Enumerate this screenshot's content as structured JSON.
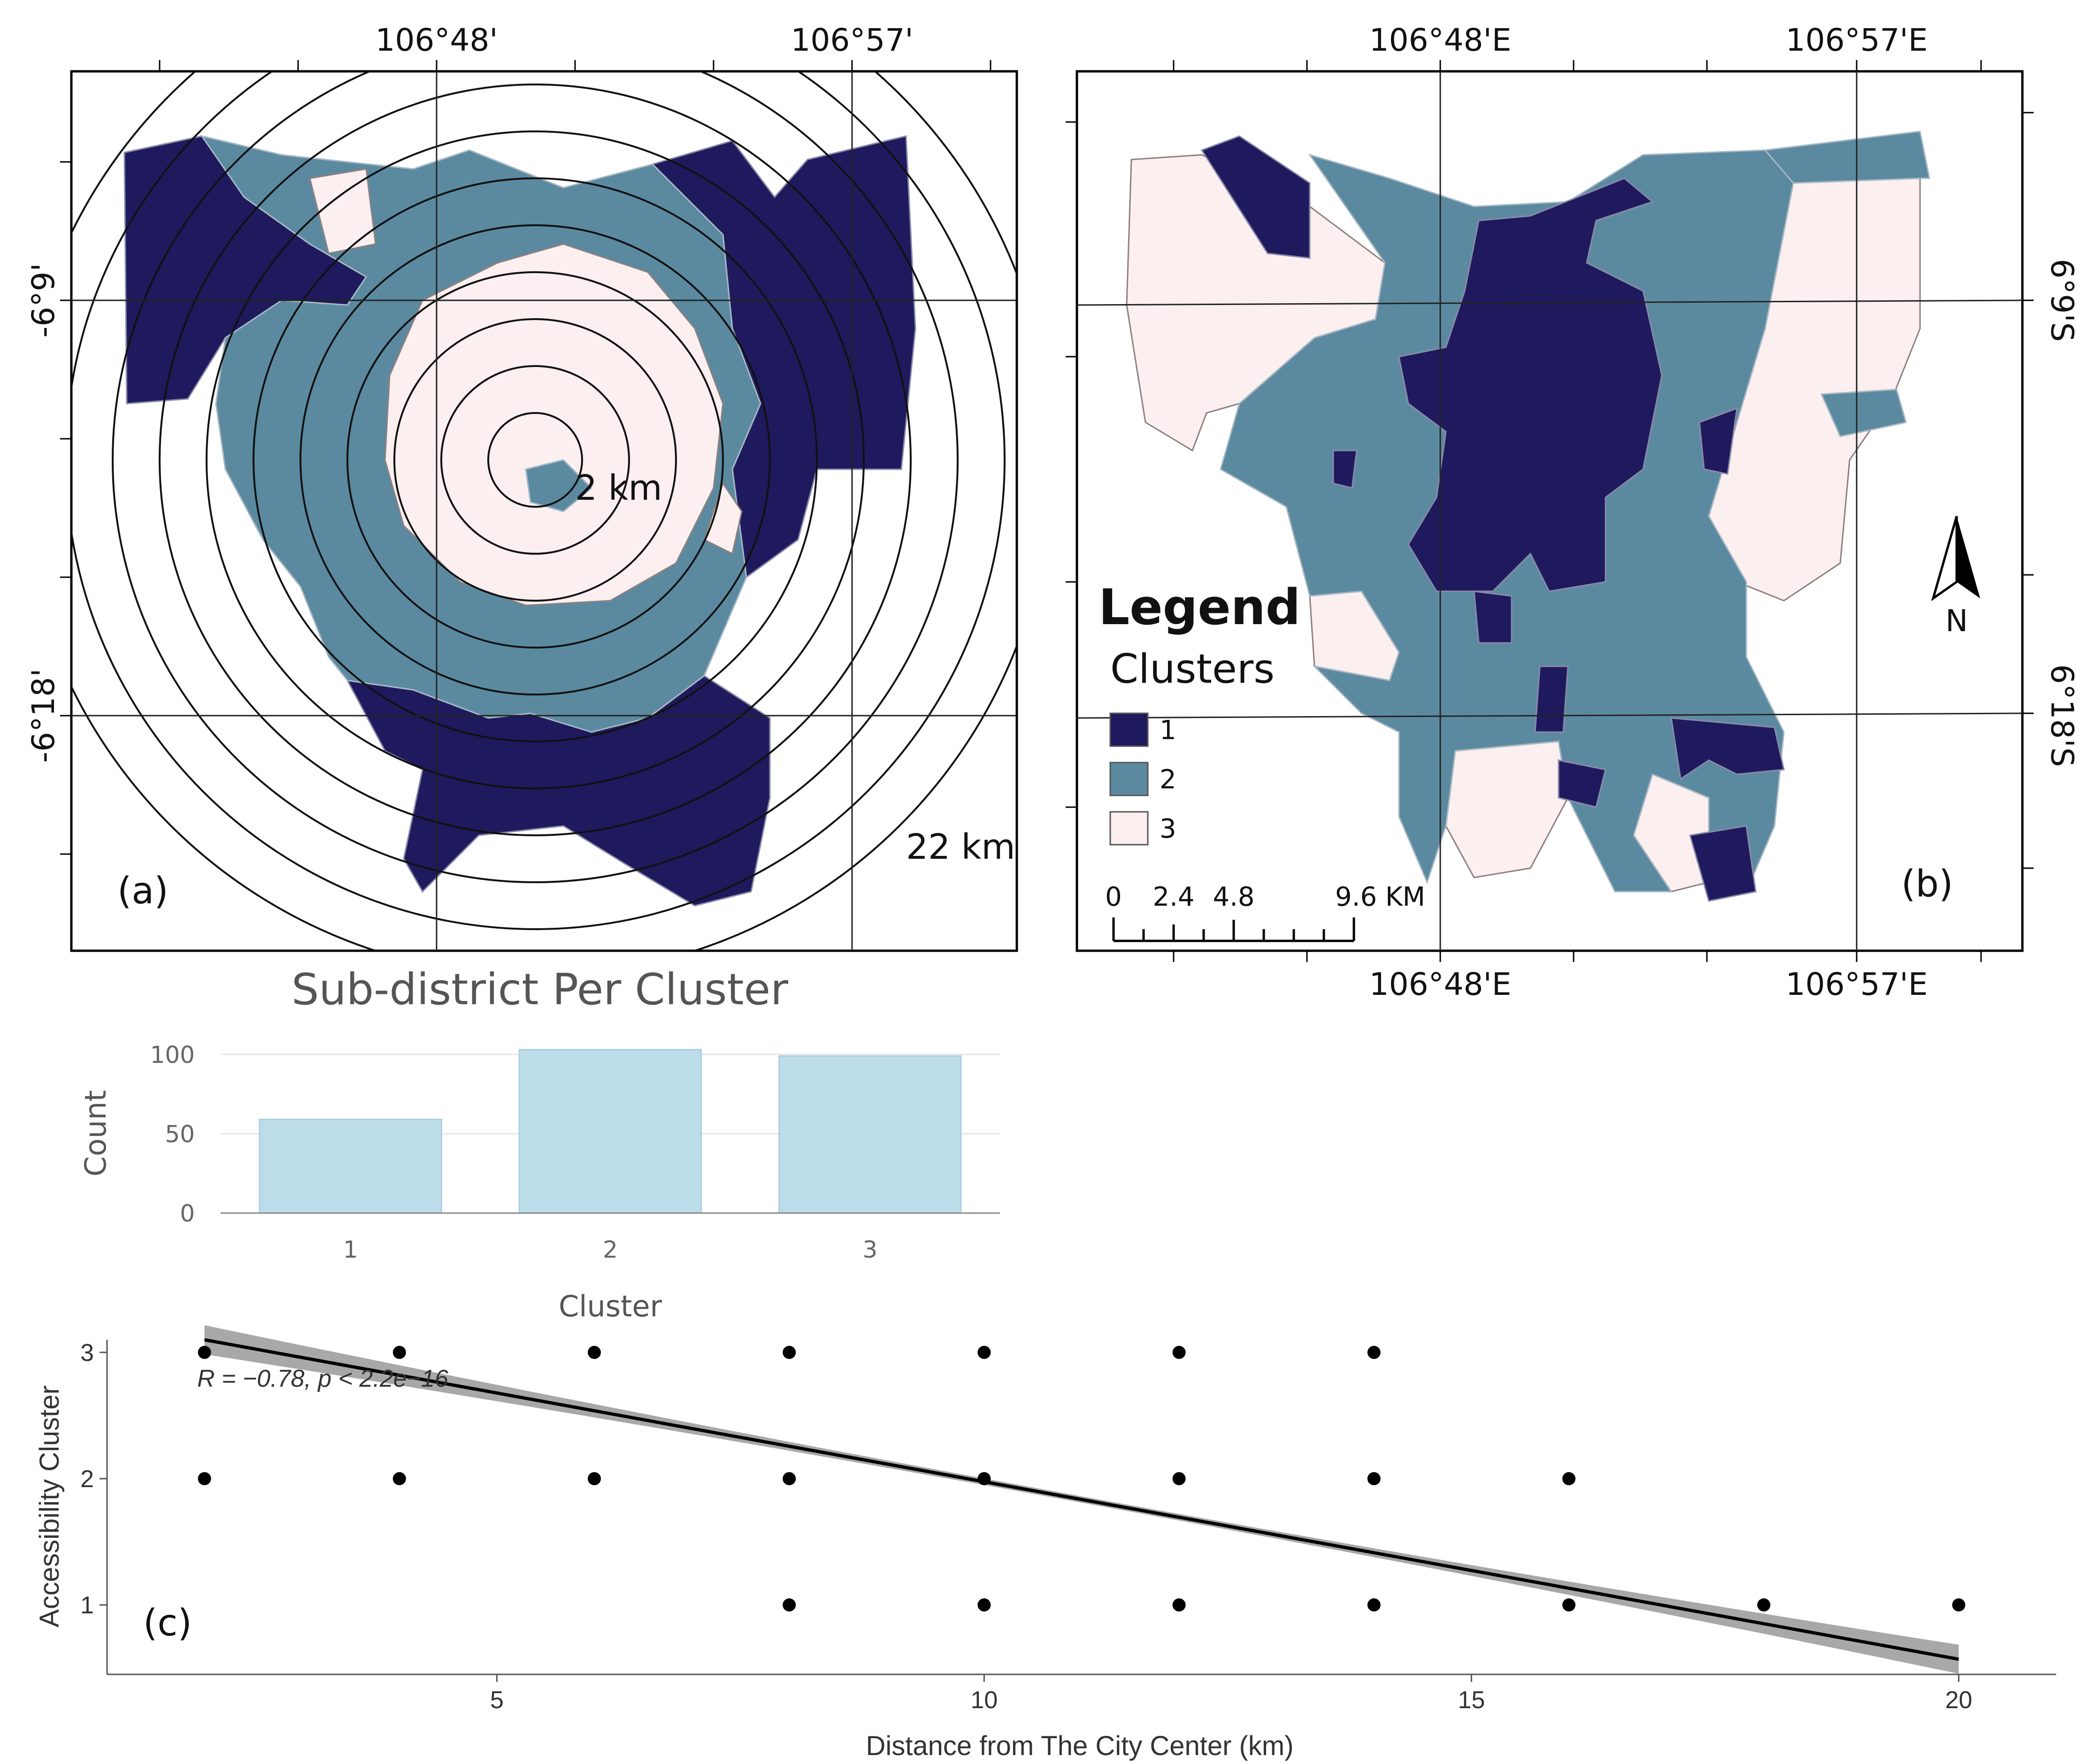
{
  "map_a": {
    "top_labels": [
      "106°48'",
      "106°57'"
    ],
    "left_labels": [
      "-6°9'",
      "-6°18'"
    ],
    "ring_inner_label": "2 km",
    "ring_outer_label": "22 km",
    "panel_label": "(a)"
  },
  "map_b": {
    "top_labels": [
      "106°48'E",
      "106°57'E"
    ],
    "bottom_labels": [
      "106°48'E",
      "106°57'E"
    ],
    "right_labels": [
      "6°9'S",
      "6°18'S"
    ],
    "panel_label": "(b)",
    "north_label": "N",
    "legend": {
      "title": "Legend",
      "subtitle": "Clusters",
      "items": [
        {
          "label": "1",
          "color": "#1f1a5e"
        },
        {
          "label": "2",
          "color": "#5b8aa0"
        },
        {
          "label": "3",
          "color": "#fbefef"
        }
      ]
    },
    "scale_bar": {
      "labels": [
        "0",
        "2.4",
        "4.8",
        "9.6 KM"
      ]
    }
  },
  "colors": {
    "cluster1": "#1f1a5e",
    "cluster2": "#5b8aa0",
    "cluster3": "#fbefef",
    "bar": "#bcdcea"
  },
  "chart_data": [
    {
      "type": "bar",
      "title": "Sub-district Per Cluster",
      "xlabel": "Cluster",
      "ylabel": "Count",
      "categories": [
        "1",
        "2",
        "3"
      ],
      "values": [
        59,
        103,
        99
      ],
      "yticks": [
        "0",
        "50",
        "100"
      ],
      "ylim": [
        0,
        105
      ]
    },
    {
      "type": "scatter",
      "panel_label": "(c)",
      "xlabel": "Distance from The City Center (km)",
      "ylabel": "Accessibility Cluster",
      "annotation": "R = −0.78, p < 2.2e−16",
      "xticks": [
        "5",
        "10",
        "15",
        "20"
      ],
      "yticks": [
        "1",
        "2",
        "3"
      ],
      "xlim": [
        1,
        21
      ],
      "ylim": [
        0.45,
        3.1
      ],
      "points": [
        [
          2,
          3
        ],
        [
          4,
          3
        ],
        [
          6,
          3
        ],
        [
          8,
          3
        ],
        [
          10,
          3
        ],
        [
          12,
          3
        ],
        [
          14,
          3
        ],
        [
          2,
          2
        ],
        [
          4,
          2
        ],
        [
          6,
          2
        ],
        [
          8,
          2
        ],
        [
          10,
          2
        ],
        [
          12,
          2
        ],
        [
          14,
          2
        ],
        [
          16,
          2
        ],
        [
          8,
          1
        ],
        [
          10,
          1
        ],
        [
          12,
          1
        ],
        [
          14,
          1
        ],
        [
          16,
          1
        ],
        [
          18,
          1
        ],
        [
          20,
          1
        ]
      ],
      "fit": {
        "x": [
          2,
          20
        ],
        "y": [
          3.1,
          0.57
        ]
      }
    }
  ]
}
